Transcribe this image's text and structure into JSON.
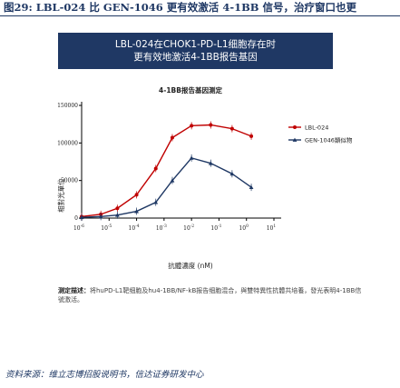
{
  "figure_title": "图29: LBL-024 比 GEN-1046 更有效激活 4-1BB 信号，治疗窗口也更",
  "banner": {
    "line1": "LBL-024在CHOK1-PD-L1细胞存在时",
    "line2": "更有效地激活4-1BB报告基因"
  },
  "caption": {
    "label": "测定描述：",
    "text": "将huPD-L1靶细胞及hu4-1BB/NF-kB报告细胞混合，與雙特異性抗體共培養，發光表明4-1BB信號激活。"
  },
  "source": "资料来源：维立志博招股说明书，信达证券研发中心",
  "chart_data": {
    "type": "line",
    "title": "4-1BB报告基因测定",
    "xlabel": "抗體濃度 (nM)",
    "ylabel": "相對光單位",
    "xscale": "log",
    "xlim": [
      1e-06,
      10
    ],
    "ylim": [
      0,
      150000
    ],
    "xticks": [
      1e-06,
      1e-05,
      0.0001,
      0.001,
      0.01,
      0.1,
      1,
      10
    ],
    "xtick_labels": [
      {
        "base": "10",
        "exp": "-6"
      },
      {
        "base": "10",
        "exp": "-5"
      },
      {
        "base": "10",
        "exp": "-4"
      },
      {
        "base": "10",
        "exp": "-3"
      },
      {
        "base": "10",
        "exp": "-2"
      },
      {
        "base": "10",
        "exp": "-1"
      },
      {
        "base": "10",
        "exp": "0"
      },
      {
        "base": "10",
        "exp": "1"
      }
    ],
    "yticks": [
      0,
      50000,
      100000,
      150000
    ],
    "ytick_labels": [
      "0",
      "50000",
      "100000",
      "150000"
    ],
    "legend_position": "top-right",
    "series": [
      {
        "name": "LBL-024",
        "color": "#c00000",
        "marker": "circle",
        "x": [
          1e-06,
          5e-06,
          2e-05,
          0.0001,
          0.0005,
          0.002,
          0.01,
          0.05,
          0.3,
          1.5
        ],
        "y": [
          2000,
          5000,
          13000,
          31000,
          66000,
          107000,
          123000,
          124000,
          119000,
          109000
        ]
      },
      {
        "name": "GEN-1046類似物",
        "color": "#1f3864",
        "marker": "triangle",
        "x": [
          1e-06,
          5e-06,
          2e-05,
          0.0001,
          0.0005,
          0.002,
          0.01,
          0.05,
          0.3,
          1.5
        ],
        "y": [
          1000,
          2000,
          4000,
          9000,
          21000,
          50000,
          80000,
          73000,
          59000,
          41000
        ]
      }
    ]
  }
}
